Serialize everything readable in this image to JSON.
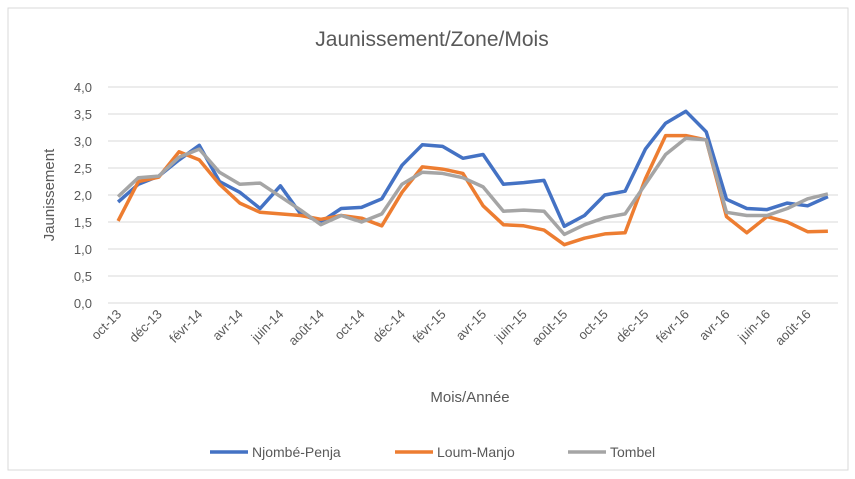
{
  "chart_data": {
    "type": "line",
    "title": "Jaunissement/Zone/Mois",
    "xlabel": "Mois/Année",
    "ylabel": "Jaunissement",
    "categories": [
      "oct-13",
      null,
      "déc-13",
      null,
      "févr-14",
      null,
      "avr-14",
      null,
      "juin-14",
      null,
      "août-14",
      null,
      "oct-14",
      null,
      "déc-14",
      null,
      "févr-15",
      null,
      "avr-15",
      null,
      "juin-15",
      null,
      "août-15",
      null,
      "oct-15",
      null,
      "déc-15",
      null,
      "févr-16",
      null,
      "avr-16",
      null,
      "juin-16",
      null,
      "août-16",
      null
    ],
    "series": [
      {
        "name": "Njombé-Penja",
        "color": "#4472c4",
        "values": [
          1.87,
          2.2,
          2.35,
          2.65,
          2.92,
          2.25,
          2.05,
          1.75,
          2.17,
          1.65,
          1.5,
          1.75,
          1.77,
          1.93,
          2.55,
          2.93,
          2.9,
          2.68,
          2.75,
          2.2,
          2.23,
          2.27,
          1.42,
          1.62,
          2.0,
          2.07,
          2.85,
          3.33,
          3.55,
          3.17,
          1.92,
          1.75,
          1.73,
          1.85,
          1.8,
          1.97
        ]
      },
      {
        "name": "Loum-Manjo",
        "color": "#ed7d31",
        "values": [
          1.52,
          2.25,
          2.33,
          2.8,
          2.65,
          2.2,
          1.85,
          1.68,
          1.65,
          1.62,
          1.55,
          1.62,
          1.57,
          1.43,
          2.05,
          2.52,
          2.48,
          2.4,
          1.8,
          1.45,
          1.43,
          1.35,
          1.08,
          1.2,
          1.28,
          1.3,
          2.3,
          3.1,
          3.1,
          3.02,
          1.6,
          1.3,
          1.6,
          1.5,
          1.32,
          1.33
        ]
      },
      {
        "name": "Tombel",
        "color": "#a5a5a5",
        "values": [
          1.97,
          2.32,
          2.35,
          2.7,
          2.85,
          2.42,
          2.2,
          2.22,
          1.97,
          1.72,
          1.45,
          1.62,
          1.5,
          1.65,
          2.2,
          2.42,
          2.4,
          2.32,
          2.15,
          1.7,
          1.72,
          1.7,
          1.27,
          1.45,
          1.58,
          1.65,
          2.2,
          2.75,
          3.05,
          3.02,
          1.68,
          1.62,
          1.62,
          1.75,
          1.93,
          2.02
        ]
      }
    ],
    "ylim": [
      0,
      4
    ],
    "yticks": [
      {
        "value": 0,
        "label": "0,0"
      },
      {
        "value": 0.5,
        "label": "0,5"
      },
      {
        "value": 1,
        "label": "1,0"
      },
      {
        "value": 1.5,
        "label": "1,5"
      },
      {
        "value": 2,
        "label": "2,0"
      },
      {
        "value": 2.5,
        "label": "2,5"
      },
      {
        "value": 3,
        "label": "3,0"
      },
      {
        "value": 3.5,
        "label": "3,5"
      },
      {
        "value": 4,
        "label": "4,0"
      }
    ],
    "grid": true,
    "legend": "bottom"
  }
}
